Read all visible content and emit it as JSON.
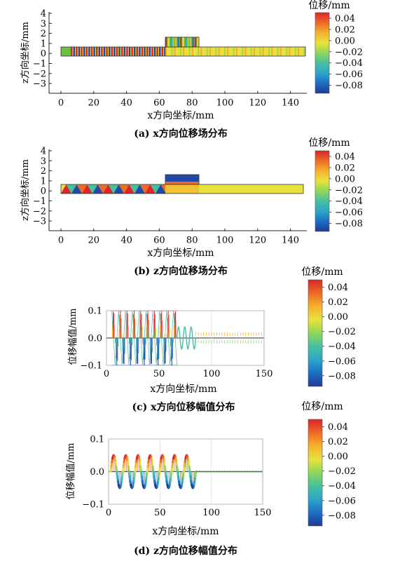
{
  "colors": {
    "cbar": [
      "#1f3a93",
      "#1c6fc4",
      "#2ea6c8",
      "#46c0a0",
      "#8fd65a",
      "#e8e33a",
      "#f5b22d",
      "#ee6a27",
      "#d8262a"
    ],
    "green": "#6bbf3a",
    "yellow": "#e6df3c",
    "red": "#d9262a",
    "blue": "#1f4aa8",
    "axis": "#222222"
  },
  "colorbars": [
    {
      "title": "位移/mm",
      "ticks": [
        "0.04",
        "0.02",
        "0.00",
        "−0.02",
        "−0.04",
        "−0.06",
        "−0.08"
      ]
    },
    {
      "title": "位移/mm",
      "ticks": [
        "0.04",
        "0.02",
        "0.00",
        "−0.02",
        "−0.04",
        "−0.06",
        "−0.08"
      ]
    },
    {
      "title": "位移/mm",
      "ticks": [
        "0.04",
        "0.02",
        "0.00",
        "−0.02",
        "−0.04",
        "−0.06",
        "−0.08"
      ]
    },
    {
      "title": "位移/mm",
      "ticks": [
        "0.04",
        "0.02",
        "0.00",
        "−0.02",
        "−0.04",
        "−0.06",
        "−0.08"
      ]
    }
  ],
  "chart_data": [
    {
      "type": "heatmap",
      "title": "(a) x方向位移场分布",
      "xlabel": "x方向坐标/mm",
      "ylabel": "z方向坐标/mm",
      "xlim": [
        -5,
        150
      ],
      "ylim": [
        -3.5,
        4
      ],
      "xticks": [
        "0",
        "20",
        "40",
        "60",
        "80",
        "100",
        "120",
        "140"
      ],
      "yticks": [
        "4",
        "3",
        "2",
        "1",
        "0",
        "−1",
        "−2",
        "−3"
      ],
      "regions": [
        {
          "name": "strip",
          "x": [
            0,
            150
          ],
          "z": [
            0,
            1
          ],
          "pattern": "stripes"
        },
        {
          "name": "block",
          "x": [
            65,
            85
          ],
          "z": [
            1,
            2
          ],
          "pattern": "stripes"
        }
      ]
    },
    {
      "type": "heatmap",
      "title": "(b) z方向位移场分布",
      "xlabel": "x方向坐标/mm",
      "ylabel": "z方向坐标/mm",
      "xlim": [
        -5,
        150
      ],
      "ylim": [
        -3.5,
        4
      ],
      "xticks": [
        "0",
        "20",
        "40",
        "60",
        "80",
        "100",
        "120",
        "140"
      ],
      "yticks": [
        "4",
        "3",
        "2",
        "1",
        "0",
        "−1",
        "−2",
        "−3"
      ],
      "regions": [
        {
          "name": "strip",
          "x": [
            0,
            150
          ],
          "z": [
            0,
            1
          ],
          "pattern": "diagonal"
        },
        {
          "name": "block",
          "x": [
            65,
            85
          ],
          "z": [
            1,
            2
          ],
          "pattern": "blue-top"
        }
      ]
    },
    {
      "type": "line",
      "title": "(c) x方向位移幅值分布",
      "xlabel": "x方向坐标/mm",
      "ylabel": "位移幅值/mm",
      "xlim": [
        0,
        150
      ],
      "ylim": [
        -0.1,
        0.1
      ],
      "xticks": [
        "0",
        "50",
        "100",
        "150"
      ],
      "yticks": [
        "0.1",
        "0.0",
        "−0.1"
      ],
      "grid": true,
      "series": [
        {
          "kind": "oscillation",
          "x_range": [
            5,
            67
          ],
          "amplitude": 0.1,
          "cycles": 9.5
        },
        {
          "kind": "decay",
          "x_range": [
            67,
            85
          ],
          "amplitude": 0.04,
          "cycles": 3
        },
        {
          "kind": "residual",
          "x_range": [
            85,
            150
          ],
          "amplitude": 0.02,
          "cycles": 12
        }
      ]
    },
    {
      "type": "line",
      "title": "(d) z方向位移幅值分布",
      "xlabel": "x方向坐标/mm",
      "ylabel": "位移幅值/mm",
      "xlim": [
        0,
        150
      ],
      "ylim": [
        -0.1,
        0.1
      ],
      "xticks": [
        "0",
        "50",
        "100",
        "150"
      ],
      "yticks": [
        "0.1",
        "0.0",
        "−0.1"
      ],
      "grid": true,
      "series": [
        {
          "kind": "oscillation",
          "x_range": [
            2,
            85
          ],
          "amplitude": 0.05,
          "center": 0.0,
          "cycles": 7
        },
        {
          "kind": "flat",
          "x_range": [
            85,
            150
          ],
          "amplitude": 0.002
        }
      ]
    }
  ]
}
